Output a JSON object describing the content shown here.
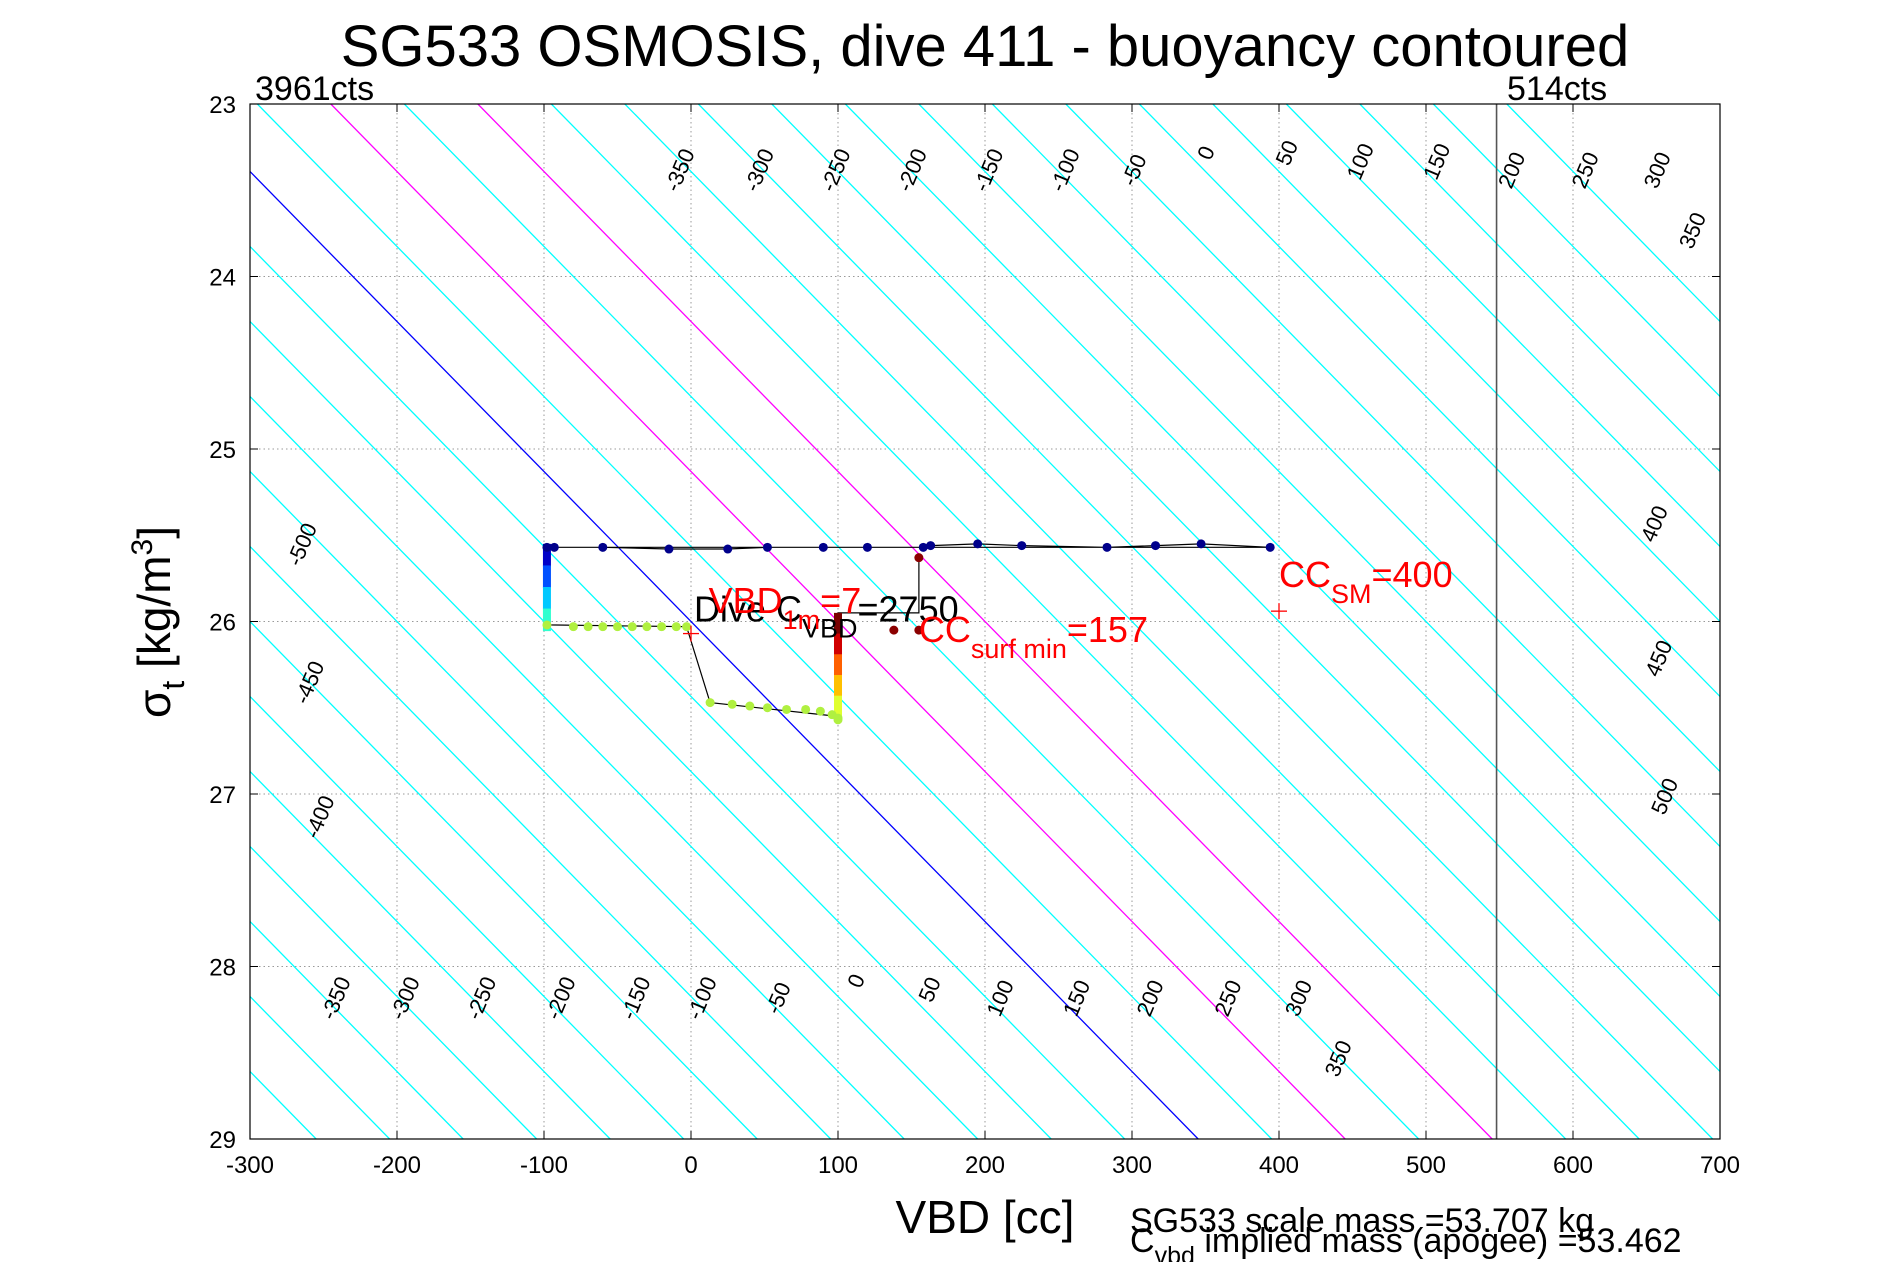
{
  "chart_data": {
    "type": "scatter",
    "title": "SG533 OSMOSIS, dive 411 - buoyancy contoured",
    "xlabel": "VBD [cc]",
    "ylabel_main": "σ",
    "ylabel_sub": "t",
    "ylabel_unit_pre": " [kg/m",
    "ylabel_unit_sup": "3",
    "ylabel_unit_post": "]",
    "xlim": [
      -300,
      700
    ],
    "ylim": [
      23,
      29
    ],
    "y_reversed": true,
    "grid": true,
    "xticks": [
      -300,
      -200,
      -100,
      0,
      100,
      200,
      300,
      400,
      500,
      600,
      700
    ],
    "yticks": [
      23,
      24,
      25,
      26,
      27,
      28,
      29
    ],
    "corner_left": "3961cts",
    "corner_right": "514cts",
    "vertical_line_x": 548,
    "contours": {
      "spacing": 50,
      "min": -700,
      "max": 900,
      "slope_cc_per_sigma": -115,
      "colors": {
        "default": "#00ffff",
        "zero": "#0000ff",
        "highlight": "#ff00ff"
      },
      "highlight_levels": [
        100,
        200
      ],
      "top_labels": [
        {
          "text": "-350",
          "x": -3,
          "y": 23.4
        },
        {
          "text": "-300",
          "x": 51,
          "y": 23.4
        },
        {
          "text": "-250",
          "x": 103,
          "y": 23.4
        },
        {
          "text": "-200",
          "x": 155,
          "y": 23.4
        },
        {
          "text": "-150",
          "x": 207,
          "y": 23.4
        },
        {
          "text": "-100",
          "x": 259,
          "y": 23.4
        },
        {
          "text": "-50",
          "x": 306,
          "y": 23.4
        },
        {
          "text": "0",
          "x": 355,
          "y": 23.3
        },
        {
          "text": "50",
          "x": 410,
          "y": 23.3
        },
        {
          "text": "100",
          "x": 460,
          "y": 23.35
        },
        {
          "text": "150",
          "x": 512,
          "y": 23.35
        },
        {
          "text": "200",
          "x": 563,
          "y": 23.4
        },
        {
          "text": "250",
          "x": 613,
          "y": 23.4
        },
        {
          "text": "300",
          "x": 662,
          "y": 23.4
        },
        {
          "text": "350",
          "x": 686,
          "y": 23.75
        },
        {
          "text": "-500",
          "x": -260,
          "y": 25.57
        },
        {
          "text": "-450",
          "x": -255,
          "y": 26.37
        },
        {
          "text": "-400",
          "x": -248,
          "y": 27.15
        },
        {
          "text": "400",
          "x": 660,
          "y": 25.45
        },
        {
          "text": "450",
          "x": 663,
          "y": 26.23
        },
        {
          "text": "500",
          "x": 667,
          "y": 27.03
        }
      ],
      "bottom_labels": [
        {
          "text": "-350",
          "x": -237,
          "y": 28.2
        },
        {
          "text": "-300",
          "x": -190,
          "y": 28.2
        },
        {
          "text": "-250",
          "x": -138,
          "y": 28.2
        },
        {
          "text": "-200",
          "x": -84,
          "y": 28.2
        },
        {
          "text": "-150",
          "x": -33,
          "y": 28.2
        },
        {
          "text": "-100",
          "x": 12,
          "y": 28.2
        },
        {
          "text": "-50",
          "x": 64,
          "y": 28.2
        },
        {
          "text": "0",
          "x": 117,
          "y": 28.1
        },
        {
          "text": "50",
          "x": 167,
          "y": 28.15
        },
        {
          "text": "100",
          "x": 215,
          "y": 28.2
        },
        {
          "text": "150",
          "x": 267,
          "y": 28.2
        },
        {
          "text": "200",
          "x": 317,
          "y": 28.2
        },
        {
          "text": "250",
          "x": 370,
          "y": 28.2
        },
        {
          "text": "300",
          "x": 418,
          "y": 28.2
        },
        {
          "text": "350",
          "x": 445,
          "y": 28.55
        }
      ]
    },
    "series": [
      {
        "color": "#00008b",
        "x": [
          -98,
          -93,
          -60,
          -15,
          25,
          52,
          90,
          120,
          158,
          163,
          195,
          225,
          283,
          316,
          347,
          394
        ],
        "y": [
          25.57,
          25.57,
          25.57,
          25.58,
          25.58,
          25.57,
          25.57,
          25.57,
          25.57,
          25.56,
          25.55,
          25.56,
          25.57,
          25.56,
          25.55,
          25.57
        ]
      },
      {
        "color": "#b0f040",
        "x": [
          -98,
          -80,
          -70,
          -60,
          -50,
          -40,
          -30,
          -20,
          -10,
          -3,
          13,
          28,
          40,
          52,
          65,
          78,
          88,
          96,
          100,
          100
        ],
        "y": [
          26.02,
          26.03,
          26.03,
          26.03,
          26.03,
          26.03,
          26.03,
          26.03,
          26.03,
          26.03,
          26.47,
          26.48,
          26.49,
          26.5,
          26.51,
          26.51,
          26.52,
          26.54,
          26.56,
          26.57
        ]
      },
      {
        "color": "#8b0000",
        "x": [
          155,
          155,
          138
        ],
        "y": [
          25.63,
          26.05,
          26.05
        ]
      }
    ],
    "profile_line": {
      "x": [
        -98,
        -93,
        -60,
        -15,
        25,
        52,
        90,
        120,
        158,
        163,
        195,
        225,
        283,
        316,
        347,
        394,
        -98,
        -98,
        -3,
        13,
        100,
        100,
        155,
        155
      ],
      "y": [
        25.57,
        25.57,
        25.57,
        25.58,
        25.58,
        25.57,
        25.57,
        25.57,
        25.57,
        25.56,
        25.55,
        25.56,
        25.57,
        25.56,
        25.55,
        25.57,
        25.57,
        26.02,
        26.03,
        26.47,
        26.55,
        25.95,
        25.95,
        25.63
      ]
    },
    "vertical_bars": [
      {
        "x": -98,
        "y0": 25.55,
        "y1": 26.05,
        "colors": [
          "#0000c8",
          "#0050ff",
          "#00c8ff",
          "#30ffd0"
        ]
      },
      {
        "x": 100,
        "y0": 25.95,
        "y1": 26.55,
        "colors": [
          "#7a0000",
          "#d00000",
          "#ff6000",
          "#ffc000",
          "#e0ff30"
        ]
      }
    ],
    "markers": [
      {
        "x": 0,
        "y": 26.07,
        "color": "#ff0000"
      },
      {
        "x": 400,
        "y": 25.94,
        "color": "#ff0000"
      }
    ],
    "annotations": {
      "vbd": {
        "main": "VBD",
        "sub": "1m",
        "post": "=7",
        "x": 12,
        "y": 25.95,
        "color": "#ff0000"
      },
      "dive": {
        "main": "Dive C",
        "sub": "VBD",
        "post": "=2750",
        "x": 2,
        "y": 26.0,
        "color": "#000000"
      },
      "cc_surf": {
        "main": "CC",
        "sub": "surf min",
        "post": "=157",
        "x": 155,
        "y": 26.12,
        "color": "#ff0000"
      },
      "cc_sm": {
        "main": "CC",
        "sub": "SM",
        "post": "=400",
        "x": 400,
        "y": 25.8,
        "color": "#ff0000"
      }
    },
    "footer": {
      "line1": "SG533 scale mass =53.707 kg",
      "line2_main": "C",
      "line2_sub": "vbd",
      "line2_post": " implied mass (apogee) =53.462"
    }
  }
}
